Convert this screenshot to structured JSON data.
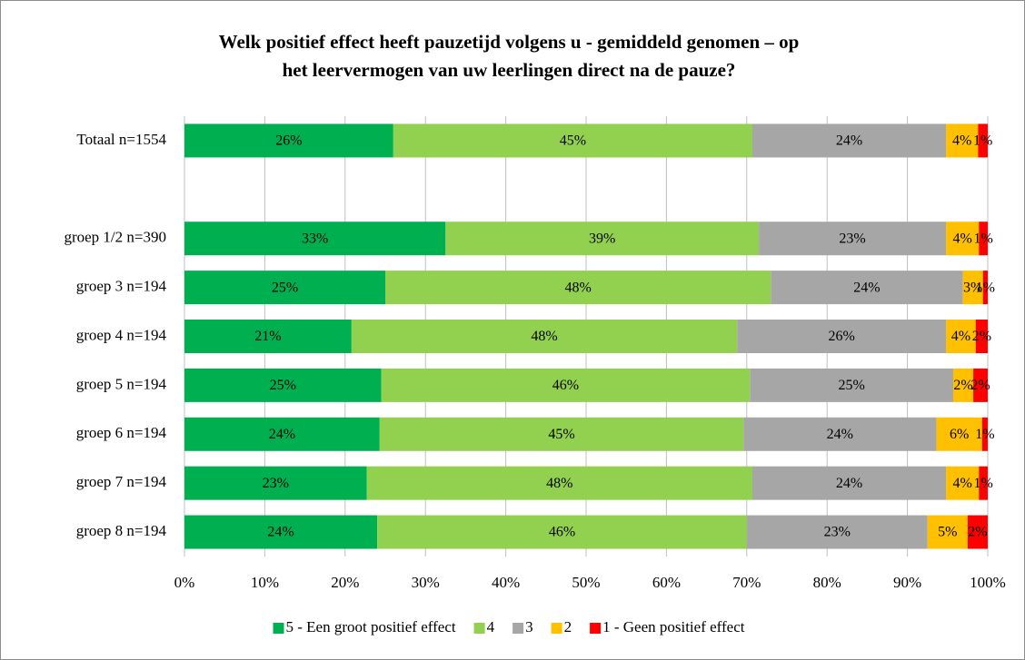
{
  "chart_data": {
    "type": "stacked-bar-horizontal",
    "title": [
      "Welk positief effect heeft pauzetijd volgens u - gemiddeld genomen – op",
      "het leervermogen van uw leerlingen direct na de pauze?"
    ],
    "categories": [
      "Totaal n=1554",
      null,
      "groep 1/2 n=390",
      "groep 3 n=194",
      "groep 4 n=194",
      "groep 5 n=194",
      "groep 6 n=194",
      "groep 7 n=194",
      "groep 8 n=194"
    ],
    "series": [
      {
        "name": "5 - Een groot positief effect",
        "color": "#00b050",
        "values": [
          26,
          null,
          32.5,
          25,
          20.8,
          24.5,
          24.3,
          22.7,
          24
        ],
        "value_labels": [
          "26%",
          null,
          "33%",
          "25%",
          "21%",
          "25%",
          "24%",
          "23%",
          "24%"
        ]
      },
      {
        "name": "4",
        "color": "#92d050",
        "values": [
          44.7,
          null,
          39,
          48,
          48,
          45.9,
          45.3,
          48,
          46
        ],
        "value_labels": [
          "45%",
          null,
          "39%",
          "48%",
          "48%",
          "46%",
          "45%",
          "48%",
          "46%"
        ]
      },
      {
        "name": "3",
        "color": "#a6a6a6",
        "values": [
          24.1,
          null,
          23.3,
          23.9,
          26,
          25.3,
          24,
          24.1,
          22.5
        ],
        "value_labels": [
          "24%",
          null,
          "23%",
          "24%",
          "26%",
          "25%",
          "24%",
          "24%",
          "23%"
        ]
      },
      {
        "name": "2",
        "color": "#ffc000",
        "values": [
          4,
          null,
          4.1,
          2.5,
          3.7,
          2.5,
          5.7,
          4.1,
          5
        ],
        "value_labels": [
          "4%",
          null,
          "4%",
          "3%",
          "4%",
          "2%",
          "6%",
          "4%",
          "5%"
        ]
      },
      {
        "name": "1 - Geen positief effect",
        "color": "#ff0000",
        "values": [
          1.2,
          null,
          1.1,
          0.6,
          1.5,
          1.8,
          0.7,
          1.1,
          2.5
        ],
        "value_labels": [
          "1%",
          null,
          "1%",
          "1%",
          "2%",
          "2%",
          "1%",
          "1%",
          "2%"
        ]
      }
    ],
    "xlim": [
      0,
      100
    ],
    "xticks": [
      {
        "value": 0,
        "label": "0%"
      },
      {
        "value": 10,
        "label": "10%"
      },
      {
        "value": 20,
        "label": "20%"
      },
      {
        "value": 30,
        "label": "30%"
      },
      {
        "value": 40,
        "label": "40%"
      },
      {
        "value": 50,
        "label": "50%"
      },
      {
        "value": 60,
        "label": "60%"
      },
      {
        "value": 70,
        "label": "70%"
      },
      {
        "value": 80,
        "label": "80%"
      },
      {
        "value": 90,
        "label": "90%"
      },
      {
        "value": 100,
        "label": "100%"
      }
    ],
    "grid": true,
    "legend": "bottom"
  }
}
